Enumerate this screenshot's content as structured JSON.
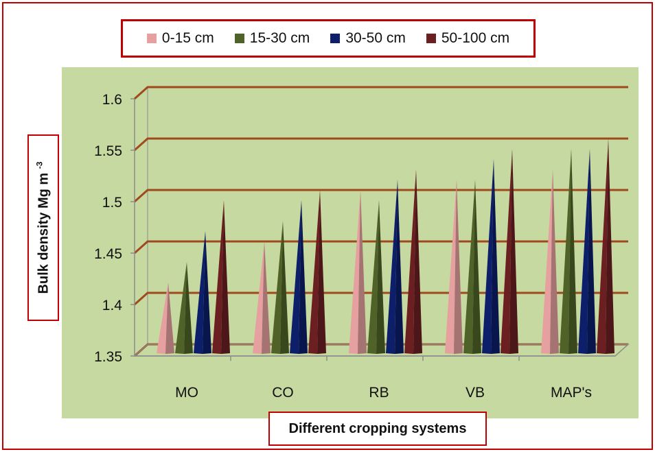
{
  "colors": {
    "frame": "#c00000",
    "plot_bg": "#c6d9a0",
    "gridline": "#a0491e",
    "axis": "#8c8c8c"
  },
  "chart_data": {
    "type": "bar",
    "style": "3d-cone",
    "categories": [
      "MO",
      "CO",
      "RB",
      "VB",
      "MAP's"
    ],
    "series": [
      {
        "name": "0-15 cm",
        "color": "#e6a0a0",
        "values": [
          1.42,
          1.46,
          1.51,
          1.52,
          1.53
        ]
      },
      {
        "name": "15-30 cm",
        "color": "#4f6228",
        "values": [
          1.44,
          1.48,
          1.5,
          1.52,
          1.55
        ]
      },
      {
        "name": "30-50 cm",
        "color": "#0d1f6b",
        "values": [
          1.47,
          1.5,
          1.52,
          1.54,
          1.55
        ]
      },
      {
        "name": "50-100 cm",
        "color": "#6b1f21",
        "values": [
          1.5,
          1.51,
          1.53,
          1.55,
          1.56
        ]
      }
    ],
    "xlabel": "Different cropping systems",
    "ylabel": "Bulk density Mg m",
    "ylabel_sup": "-3",
    "ylim": [
      1.35,
      1.6
    ],
    "yticks": [
      "1.35",
      "1.4",
      "1.45",
      "1.5",
      "1.55",
      "1.6"
    ],
    "grid": true,
    "legend_position": "top"
  }
}
